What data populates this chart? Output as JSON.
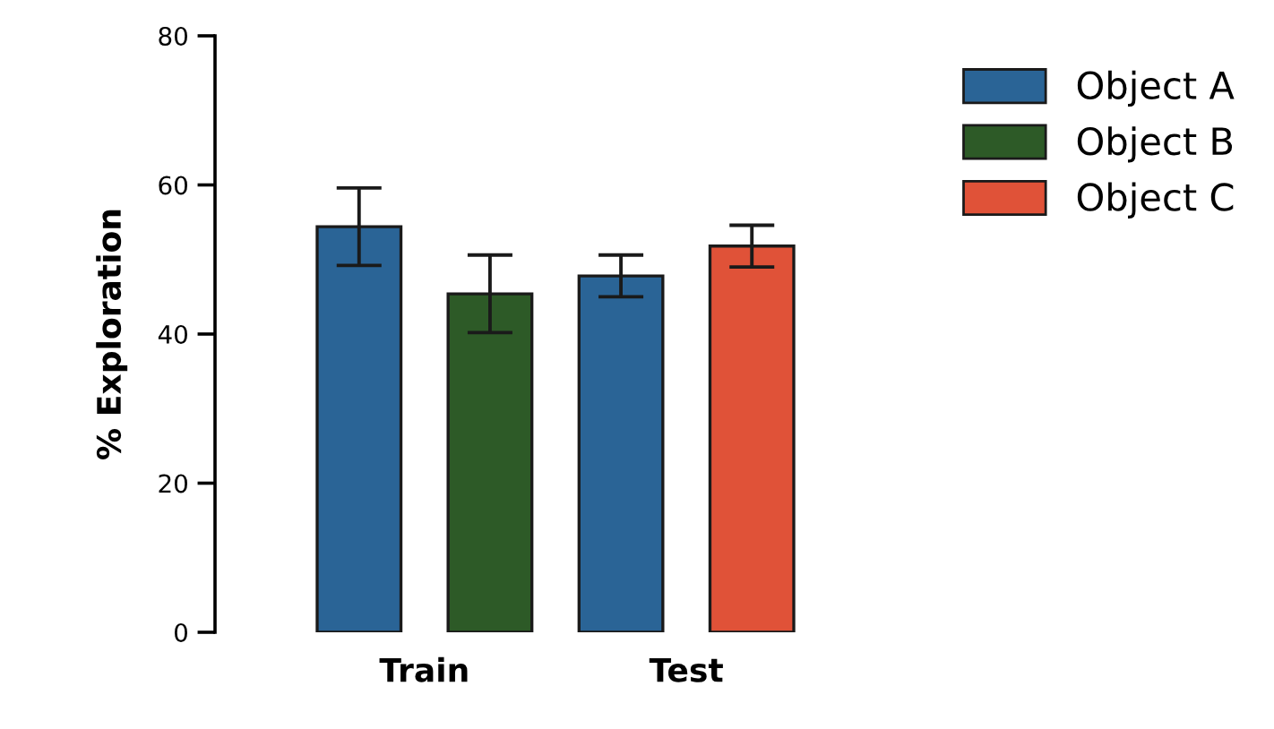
{
  "chart_data": {
    "type": "bar",
    "ylabel": "% Exploration",
    "categories": [
      "Train",
      "Test"
    ],
    "series": [
      {
        "name": "Object A",
        "color": "#2a6496",
        "values": [
          54.4,
          47.8
        ],
        "errors": [
          5.2,
          2.8
        ]
      },
      {
        "name": "Object B",
        "color": "#2d5a27",
        "values": [
          45.4,
          null
        ],
        "errors": [
          5.2,
          null
        ]
      },
      {
        "name": "Object C",
        "color": "#e05238",
        "values": [
          null,
          51.8
        ],
        "errors": [
          null,
          2.8
        ]
      }
    ],
    "ylim": [
      0,
      80
    ],
    "yticks": [
      0,
      20,
      40,
      60,
      80
    ],
    "grid": false,
    "legend": "top right"
  }
}
